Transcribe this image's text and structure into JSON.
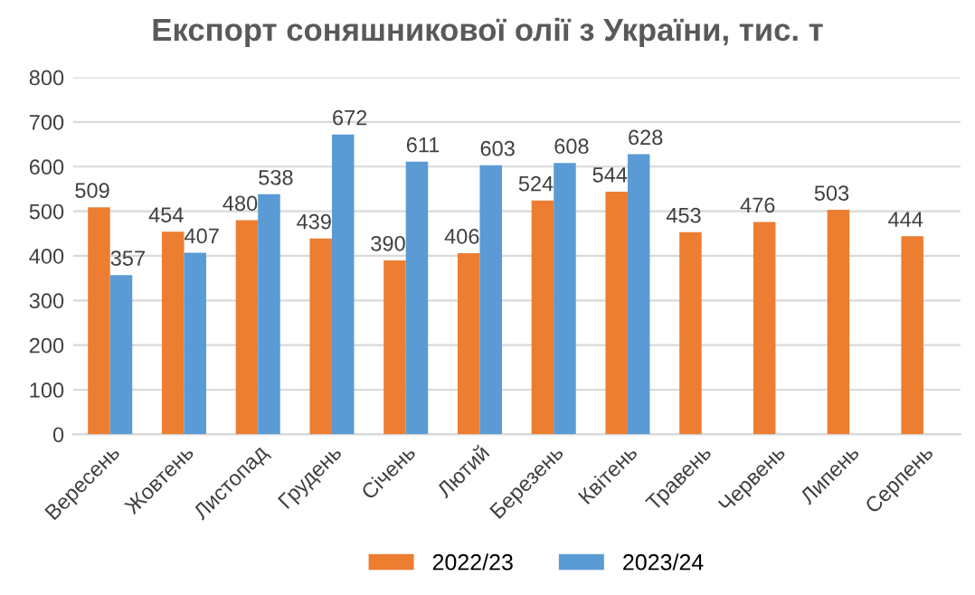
{
  "chart_data": {
    "type": "bar",
    "title": "Експорт соняшникової олії з України, тис. т",
    "categories": [
      "Вересень",
      "Жовтень",
      "Листопад",
      "Грудень",
      "Січень",
      "Лютий",
      "Березень",
      "Квітень",
      "Травень",
      "Червень",
      "Липень",
      "Серпень"
    ],
    "series": [
      {
        "name": "2022/23",
        "color": "#ed7d31",
        "values": [
          509,
          454,
          480,
          439,
          390,
          406,
          524,
          544,
          453,
          476,
          503,
          444
        ]
      },
      {
        "name": "2023/24",
        "color": "#5b9bd5",
        "values": [
          357,
          407,
          538,
          672,
          611,
          603,
          608,
          628,
          null,
          null,
          null,
          null
        ]
      }
    ],
    "ylim": [
      0,
      800
    ],
    "yticks": [
      0,
      100,
      200,
      300,
      400,
      500,
      600,
      700,
      800
    ],
    "grid": "y",
    "legend": "bottom",
    "data_labels": true
  }
}
